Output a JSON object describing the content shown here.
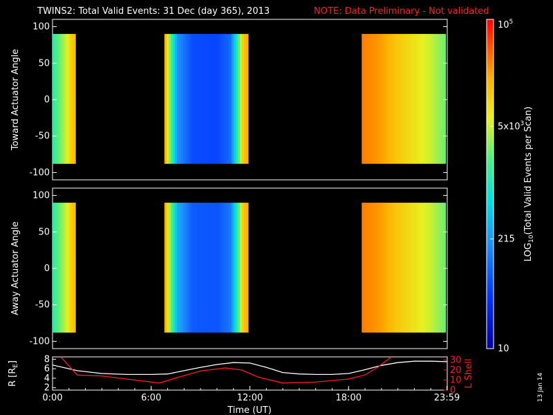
{
  "header": {
    "title": "TWINS2: Total Valid Events: 31 Dec (day 365), 2013",
    "note": "NOTE: Data Preliminary - Not validated",
    "note_color": "#ff2020"
  },
  "side_stamp": "13 Jan 14",
  "colorbar": {
    "label_main": "LOG",
    "label_sub": "10",
    "label_rest": "(Total Valid Events per Scan)",
    "ticks": [
      {
        "label": "10",
        "value": 10
      },
      {
        "label": "215",
        "value": 215
      },
      {
        "label": "5x10",
        "sup": "3",
        "value": 5000
      },
      {
        "label": "10",
        "sup": "5",
        "value": 100000
      }
    ],
    "range": [
      10,
      100000
    ],
    "scale": "log"
  },
  "chart_data": [
    {
      "type": "heatmap",
      "ylabel": "Toward Actuator Angle",
      "ylim": [
        -110,
        110
      ],
      "yticks": [
        -100,
        -50,
        0,
        50,
        100
      ],
      "xlim": [
        0,
        24
      ],
      "angle_range": [
        -88,
        90
      ],
      "coverage_hours": [
        [
          0.0,
          1.4
        ],
        [
          6.8,
          11.9
        ],
        [
          18.8,
          23.9
        ]
      ],
      "intensity_trend": [
        {
          "t": 0.0,
          "log": 3.1
        },
        {
          "t": 0.7,
          "log": 3.6
        },
        {
          "t": 1.2,
          "log": 4.1
        },
        {
          "t": 1.4,
          "log": 4.2
        },
        {
          "t": 6.8,
          "log": 4.4
        },
        {
          "t": 7.2,
          "log": 3.3
        },
        {
          "t": 7.6,
          "log": 2.3
        },
        {
          "t": 8.5,
          "log": 1.8
        },
        {
          "t": 10.0,
          "log": 1.75
        },
        {
          "t": 10.8,
          "log": 2.0
        },
        {
          "t": 11.2,
          "log": 3.0
        },
        {
          "t": 11.6,
          "log": 4.1
        },
        {
          "t": 11.9,
          "log": 4.3
        },
        {
          "t": 18.8,
          "log": 4.5
        },
        {
          "t": 20.0,
          "log": 4.35
        },
        {
          "t": 21.0,
          "log": 4.1
        },
        {
          "t": 22.0,
          "log": 3.9
        },
        {
          "t": 23.0,
          "log": 3.7
        },
        {
          "t": 23.9,
          "log": 3.4
        }
      ]
    },
    {
      "type": "heatmap",
      "ylabel": "Away Actuator Angle",
      "ylim": [
        -110,
        110
      ],
      "yticks": [
        -100,
        -50,
        0,
        50,
        100
      ],
      "xlim": [
        0,
        24
      ],
      "angle_range": [
        -88,
        90
      ],
      "coverage_hours": [
        [
          0.0,
          1.4
        ],
        [
          6.8,
          11.9
        ],
        [
          18.8,
          23.9
        ]
      ],
      "intensity_trend": [
        {
          "t": 0.0,
          "log": 3.1
        },
        {
          "t": 0.7,
          "log": 3.6
        },
        {
          "t": 1.2,
          "log": 4.1
        },
        {
          "t": 1.4,
          "log": 4.2
        },
        {
          "t": 6.8,
          "log": 4.4
        },
        {
          "t": 7.2,
          "log": 3.4
        },
        {
          "t": 7.6,
          "log": 2.5
        },
        {
          "t": 8.5,
          "log": 1.9
        },
        {
          "t": 10.0,
          "log": 1.85
        },
        {
          "t": 10.8,
          "log": 2.1
        },
        {
          "t": 11.2,
          "log": 3.0
        },
        {
          "t": 11.6,
          "log": 4.1
        },
        {
          "t": 11.9,
          "log": 4.3
        },
        {
          "t": 18.8,
          "log": 4.5
        },
        {
          "t": 20.0,
          "log": 4.35
        },
        {
          "t": 21.0,
          "log": 4.1
        },
        {
          "t": 22.0,
          "log": 3.9
        },
        {
          "t": 23.0,
          "log": 3.7
        },
        {
          "t": 23.9,
          "log": 3.4
        }
      ]
    },
    {
      "type": "line",
      "xlabel": "Time (UT)",
      "xlim": [
        0,
        24
      ],
      "xticks": [
        {
          "label": "0:00",
          "value": 0
        },
        {
          "label": "6:00",
          "value": 6
        },
        {
          "label": "12:00",
          "value": 12
        },
        {
          "label": "18:00",
          "value": 18
        },
        {
          "label": "23:59",
          "value": 23.98
        }
      ],
      "ylabel_left": "R [R",
      "ylabel_left_sub": "E",
      "ylabel_left_end": "]",
      "ylim_left": [
        1.5,
        8.5
      ],
      "yticks_left": [
        2,
        4,
        6,
        8
      ],
      "ylabel_right": "L Shell",
      "ylim_right": [
        0,
        33
      ],
      "yticks_right": [
        0,
        10,
        20,
        30
      ],
      "series": [
        {
          "axis": "left",
          "color": "#ffffff",
          "x": [
            0,
            1.5,
            3,
            4.5,
            6,
            7,
            8,
            9,
            10,
            11,
            12,
            13,
            14,
            15,
            16,
            17,
            18,
            19,
            20,
            21,
            22,
            23,
            24
          ],
          "y": [
            6.8,
            5.6,
            5.0,
            4.8,
            4.8,
            4.9,
            5.6,
            6.3,
            6.9,
            7.3,
            7.2,
            6.3,
            5.2,
            4.9,
            4.8,
            4.8,
            5.0,
            5.8,
            6.7,
            7.3,
            7.6,
            7.6,
            7.5
          ]
        },
        {
          "axis": "right",
          "color": "#ff2020",
          "x": [
            0.5,
            1.5,
            3,
            4.5,
            6.5,
            7.5,
            9,
            10.5,
            11.5,
            12.5,
            14,
            16,
            18,
            19,
            19.8,
            20.6
          ],
          "y": [
            33,
            15,
            14,
            11,
            7,
            12,
            19,
            22,
            20,
            13,
            7,
            8,
            11,
            15,
            23,
            33
          ]
        }
      ]
    }
  ]
}
